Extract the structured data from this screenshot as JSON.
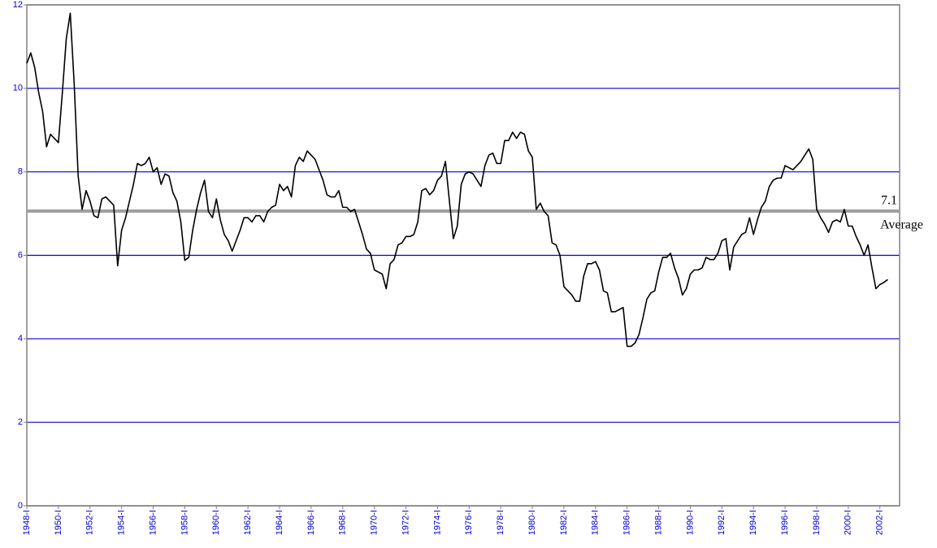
{
  "chart_data": {
    "type": "line",
    "categories": [
      "1948-I",
      null,
      null,
      null,
      null,
      null,
      null,
      null,
      "1950-I",
      null,
      null,
      null,
      null,
      null,
      null,
      null,
      "1952-I",
      null,
      null,
      null,
      null,
      null,
      null,
      null,
      "1954-I",
      null,
      null,
      null,
      null,
      null,
      null,
      null,
      "1956-I",
      null,
      null,
      null,
      null,
      null,
      null,
      null,
      "1958-I",
      null,
      null,
      null,
      null,
      null,
      null,
      null,
      "1960-I",
      null,
      null,
      null,
      null,
      null,
      null,
      null,
      "1962-I",
      null,
      null,
      null,
      null,
      null,
      null,
      null,
      "1964-I",
      null,
      null,
      null,
      null,
      null,
      null,
      null,
      "1966-I",
      null,
      null,
      null,
      null,
      null,
      null,
      null,
      "1968-I",
      null,
      null,
      null,
      null,
      null,
      null,
      null,
      "1970-I",
      null,
      null,
      null,
      null,
      null,
      null,
      null,
      "1972-I",
      null,
      null,
      null,
      null,
      null,
      null,
      null,
      "1974-I",
      null,
      null,
      null,
      null,
      null,
      null,
      null,
      "1976-I",
      null,
      null,
      null,
      null,
      null,
      null,
      null,
      "1978-I",
      null,
      null,
      null,
      null,
      null,
      null,
      null,
      "1980-I",
      null,
      null,
      null,
      null,
      null,
      null,
      null,
      "1982-I",
      null,
      null,
      null,
      null,
      null,
      null,
      null,
      "1984-I",
      null,
      null,
      null,
      null,
      null,
      null,
      null,
      "1986-I",
      null,
      null,
      null,
      null,
      null,
      null,
      null,
      "1988-I",
      null,
      null,
      null,
      null,
      null,
      null,
      null,
      "1990-I",
      null,
      null,
      null,
      null,
      null,
      null,
      null,
      "1992-I",
      null,
      null,
      null,
      null,
      null,
      null,
      null,
      "1994-I",
      null,
      null,
      null,
      null,
      null,
      null,
      null,
      "1996-I",
      null,
      null,
      null,
      null,
      null,
      null,
      null,
      "1998-I",
      null,
      null,
      null,
      null,
      null,
      null,
      null,
      "2000-I",
      null,
      null,
      null,
      null,
      null,
      null,
      null,
      "2002-I",
      null,
      null,
      null,
      null,
      null
    ],
    "values": [
      10.6,
      10.85,
      10.5,
      9.9,
      9.45,
      8.6,
      8.9,
      8.8,
      8.7,
      9.9,
      11.2,
      11.8,
      10.1,
      7.9,
      7.1,
      7.55,
      7.3,
      6.95,
      6.9,
      7.35,
      7.4,
      7.3,
      7.2,
      5.75,
      6.6,
      6.9,
      7.3,
      7.7,
      8.2,
      8.15,
      8.2,
      8.35,
      8.0,
      8.1,
      7.7,
      7.95,
      7.9,
      7.5,
      7.3,
      6.8,
      5.88,
      5.95,
      6.6,
      7.1,
      7.5,
      7.8,
      7.05,
      6.9,
      7.35,
      6.85,
      6.5,
      6.35,
      6.1,
      6.35,
      6.6,
      6.9,
      6.9,
      6.8,
      6.95,
      6.95,
      6.8,
      7.05,
      7.15,
      7.2,
      7.7,
      7.55,
      7.65,
      7.4,
      8.15,
      8.35,
      8.25,
      8.5,
      8.4,
      8.3,
      8.05,
      7.8,
      7.45,
      7.4,
      7.4,
      7.55,
      7.15,
      7.15,
      7.05,
      7.1,
      6.8,
      6.5,
      6.15,
      6.05,
      5.65,
      5.6,
      5.55,
      5.2,
      5.8,
      5.9,
      6.25,
      6.3,
      6.45,
      6.45,
      6.5,
      6.8,
      7.55,
      7.6,
      7.45,
      7.55,
      7.8,
      7.9,
      8.25,
      7.3,
      6.4,
      6.7,
      7.7,
      7.95,
      8.0,
      7.95,
      7.8,
      7.65,
      8.15,
      8.4,
      8.45,
      8.2,
      8.2,
      8.75,
      8.75,
      8.95,
      8.8,
      8.95,
      8.9,
      8.5,
      8.35,
      7.1,
      7.25,
      7.05,
      6.95,
      6.3,
      6.25,
      6.0,
      5.25,
      5.15,
      5.05,
      4.9,
      4.9,
      5.5,
      5.8,
      5.8,
      5.85,
      5.65,
      5.15,
      5.1,
      4.65,
      4.65,
      4.7,
      4.75,
      3.82,
      3.82,
      3.9,
      4.1,
      4.5,
      4.95,
      5.1,
      5.15,
      5.6,
      5.95,
      5.95,
      6.05,
      5.7,
      5.45,
      5.05,
      5.2,
      5.55,
      5.65,
      5.65,
      5.7,
      5.95,
      5.9,
      5.9,
      6.05,
      6.35,
      6.4,
      5.65,
      6.2,
      6.35,
      6.5,
      6.55,
      6.9,
      6.5,
      6.85,
      7.15,
      7.3,
      7.65,
      7.8,
      7.85,
      7.85,
      8.15,
      8.1,
      8.05,
      8.15,
      8.25,
      8.4,
      8.55,
      8.3,
      7.1,
      6.9,
      6.75,
      6.55,
      6.8,
      6.85,
      6.8,
      7.1,
      6.7,
      6.7,
      6.45,
      6.25,
      6.0,
      6.25,
      5.7,
      5.2,
      5.3,
      5.35,
      5.42,
      null,
      null,
      null
    ],
    "color": "#000000",
    "ylim": [
      0,
      12
    ],
    "yticks": [
      0,
      2,
      4,
      6,
      8,
      10,
      12
    ],
    "grid": true,
    "grid_color": "#0000cc",
    "average": {
      "value": 7.06,
      "label": "7.1",
      "text": "Average",
      "color": "#a0a0a0"
    }
  }
}
